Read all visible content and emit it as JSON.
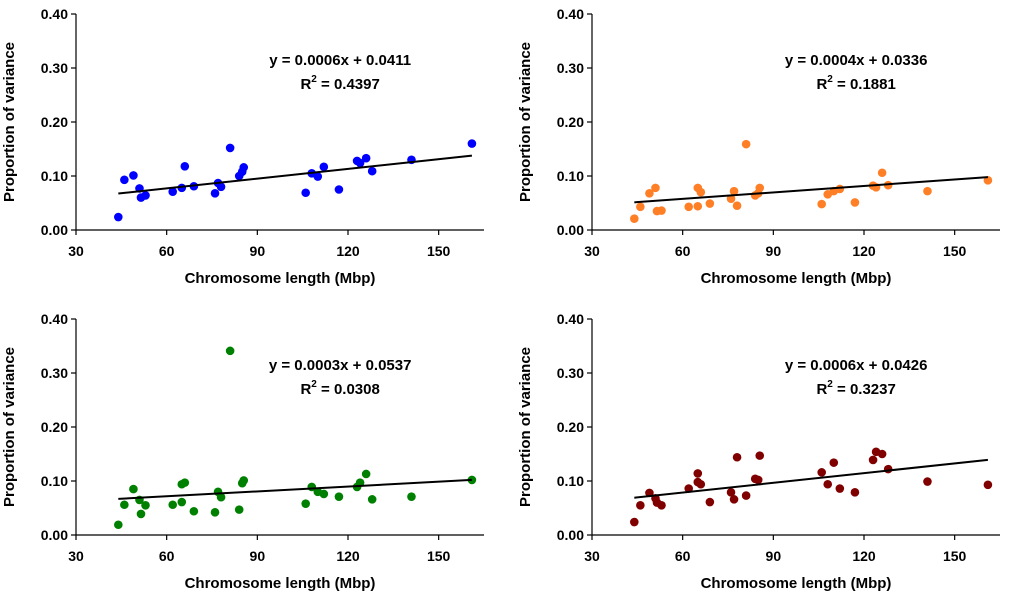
{
  "chart_data": [
    {
      "type": "scatter",
      "name": "top-left",
      "color": "#0000ff",
      "xlabel": "Chromosome length (Mbp)",
      "ylabel": "Proportion of variance",
      "xlim": [
        30,
        165
      ],
      "ylim": [
        0,
        0.4
      ],
      "xticks": [
        "30",
        "60",
        "90",
        "120",
        "150"
      ],
      "yticks": [
        "0.00",
        "0.10",
        "0.20",
        "0.30",
        "0.40"
      ],
      "equation": "y = 0.0006x + 0.0411",
      "r2_label": "R",
      "r2_value": " = 0.4397",
      "trend": {
        "slope": 0.0006,
        "intercept": 0.0411,
        "x0": 44,
        "x1": 161
      },
      "points": [
        [
          44,
          0.024
        ],
        [
          46,
          0.093
        ],
        [
          49,
          0.101
        ],
        [
          51,
          0.077
        ],
        [
          51.5,
          0.06
        ],
        [
          53,
          0.064
        ],
        [
          62,
          0.071
        ],
        [
          65,
          0.078
        ],
        [
          66,
          0.118
        ],
        [
          69,
          0.081
        ],
        [
          76,
          0.068
        ],
        [
          77,
          0.087
        ],
        [
          78,
          0.08
        ],
        [
          81,
          0.152
        ],
        [
          84,
          0.1
        ],
        [
          85,
          0.108
        ],
        [
          85.5,
          0.116
        ],
        [
          106,
          0.069
        ],
        [
          108,
          0.105
        ],
        [
          110,
          0.099
        ],
        [
          112,
          0.117
        ],
        [
          117,
          0.075
        ],
        [
          123,
          0.128
        ],
        [
          124,
          0.124
        ],
        [
          126,
          0.133
        ],
        [
          128,
          0.109
        ],
        [
          141,
          0.13
        ],
        [
          161,
          0.16
        ]
      ]
    },
    {
      "type": "scatter",
      "name": "top-right",
      "color": "#ff7f27",
      "xlabel": "Chromosome length (Mbp)",
      "ylabel": "Proportion of variance",
      "xlim": [
        30,
        165
      ],
      "ylim": [
        0,
        0.4
      ],
      "xticks": [
        "30",
        "60",
        "90",
        "120",
        "150"
      ],
      "yticks": [
        "0.00",
        "0.10",
        "0.20",
        "0.30",
        "0.40"
      ],
      "equation": "y = 0.0004x + 0.0336",
      "r2_label": "R",
      "r2_value": " = 0.1881",
      "trend": {
        "slope": 0.0004,
        "intercept": 0.0336,
        "x0": 44,
        "x1": 161
      },
      "points": [
        [
          44,
          0.021
        ],
        [
          46,
          0.043
        ],
        [
          49,
          0.068
        ],
        [
          51,
          0.078
        ],
        [
          51.5,
          0.035
        ],
        [
          53,
          0.036
        ],
        [
          62,
          0.043
        ],
        [
          65,
          0.044
        ],
        [
          65,
          0.078
        ],
        [
          66,
          0.07
        ],
        [
          69,
          0.049
        ],
        [
          76,
          0.058
        ],
        [
          77,
          0.072
        ],
        [
          78,
          0.045
        ],
        [
          81,
          0.159
        ],
        [
          84,
          0.064
        ],
        [
          85,
          0.068
        ],
        [
          85.5,
          0.078
        ],
        [
          106,
          0.048
        ],
        [
          108,
          0.066
        ],
        [
          110,
          0.072
        ],
        [
          112,
          0.076
        ],
        [
          117,
          0.051
        ],
        [
          123,
          0.082
        ],
        [
          124,
          0.079
        ],
        [
          126,
          0.106
        ],
        [
          128,
          0.083
        ],
        [
          141,
          0.072
        ],
        [
          161,
          0.092
        ]
      ]
    },
    {
      "type": "scatter",
      "name": "bottom-left",
      "color": "#008000",
      "xlabel": "Chromosome length (Mbp)",
      "ylabel": "Proportion of variance",
      "xlim": [
        30,
        165
      ],
      "ylim": [
        0,
        0.4
      ],
      "xticks": [
        "30",
        "60",
        "90",
        "120",
        "150"
      ],
      "yticks": [
        "0.00",
        "0.10",
        "0.20",
        "0.30",
        "0.40"
      ],
      "equation": "y = 0.0003x + 0.0537",
      "r2_label": "R",
      "r2_value": " = 0.0308",
      "trend": {
        "slope": 0.0003,
        "intercept": 0.0537,
        "x0": 44,
        "x1": 161
      },
      "points": [
        [
          44,
          0.019
        ],
        [
          46,
          0.056
        ],
        [
          49,
          0.085
        ],
        [
          51,
          0.065
        ],
        [
          51.5,
          0.039
        ],
        [
          53,
          0.055
        ],
        [
          62,
          0.056
        ],
        [
          65,
          0.061
        ],
        [
          65,
          0.094
        ],
        [
          66,
          0.097
        ],
        [
          69,
          0.044
        ],
        [
          76,
          0.042
        ],
        [
          77,
          0.08
        ],
        [
          78,
          0.07
        ],
        [
          81,
          0.341
        ],
        [
          84,
          0.047
        ],
        [
          85,
          0.096
        ],
        [
          85.5,
          0.101
        ],
        [
          106,
          0.058
        ],
        [
          108,
          0.089
        ],
        [
          110,
          0.08
        ],
        [
          112,
          0.076
        ],
        [
          117,
          0.071
        ],
        [
          123,
          0.089
        ],
        [
          124,
          0.097
        ],
        [
          126,
          0.113
        ],
        [
          128,
          0.066
        ],
        [
          141,
          0.071
        ],
        [
          161,
          0.102
        ]
      ]
    },
    {
      "type": "scatter",
      "name": "bottom-right",
      "color": "#800000",
      "xlabel": "Chromosome length (Mbp)",
      "ylabel": "Proportion of variance",
      "xlim": [
        30,
        165
      ],
      "ylim": [
        0,
        0.4
      ],
      "xticks": [
        "30",
        "60",
        "90",
        "120",
        "150"
      ],
      "yticks": [
        "0.00",
        "0.10",
        "0.20",
        "0.30",
        "0.40"
      ],
      "equation": "y = 0.0006x + 0.0426",
      "r2_label": "R",
      "r2_value": " = 0.3237",
      "trend": {
        "slope": 0.0006,
        "intercept": 0.0426,
        "x0": 44,
        "x1": 161
      },
      "points": [
        [
          44,
          0.024
        ],
        [
          46,
          0.055
        ],
        [
          49,
          0.078
        ],
        [
          51,
          0.068
        ],
        [
          51.5,
          0.06
        ],
        [
          53,
          0.055
        ],
        [
          62,
          0.086
        ],
        [
          65,
          0.114
        ],
        [
          65,
          0.098
        ],
        [
          66,
          0.094
        ],
        [
          69,
          0.061
        ],
        [
          76,
          0.079
        ],
        [
          77,
          0.066
        ],
        [
          78,
          0.144
        ],
        [
          81,
          0.073
        ],
        [
          84,
          0.104
        ],
        [
          85,
          0.102
        ],
        [
          85.5,
          0.147
        ],
        [
          106,
          0.116
        ],
        [
          108,
          0.094
        ],
        [
          110,
          0.134
        ],
        [
          112,
          0.086
        ],
        [
          117,
          0.079
        ],
        [
          123,
          0.139
        ],
        [
          124,
          0.154
        ],
        [
          126,
          0.15
        ],
        [
          128,
          0.122
        ],
        [
          141,
          0.099
        ],
        [
          161,
          0.093
        ]
      ]
    }
  ]
}
